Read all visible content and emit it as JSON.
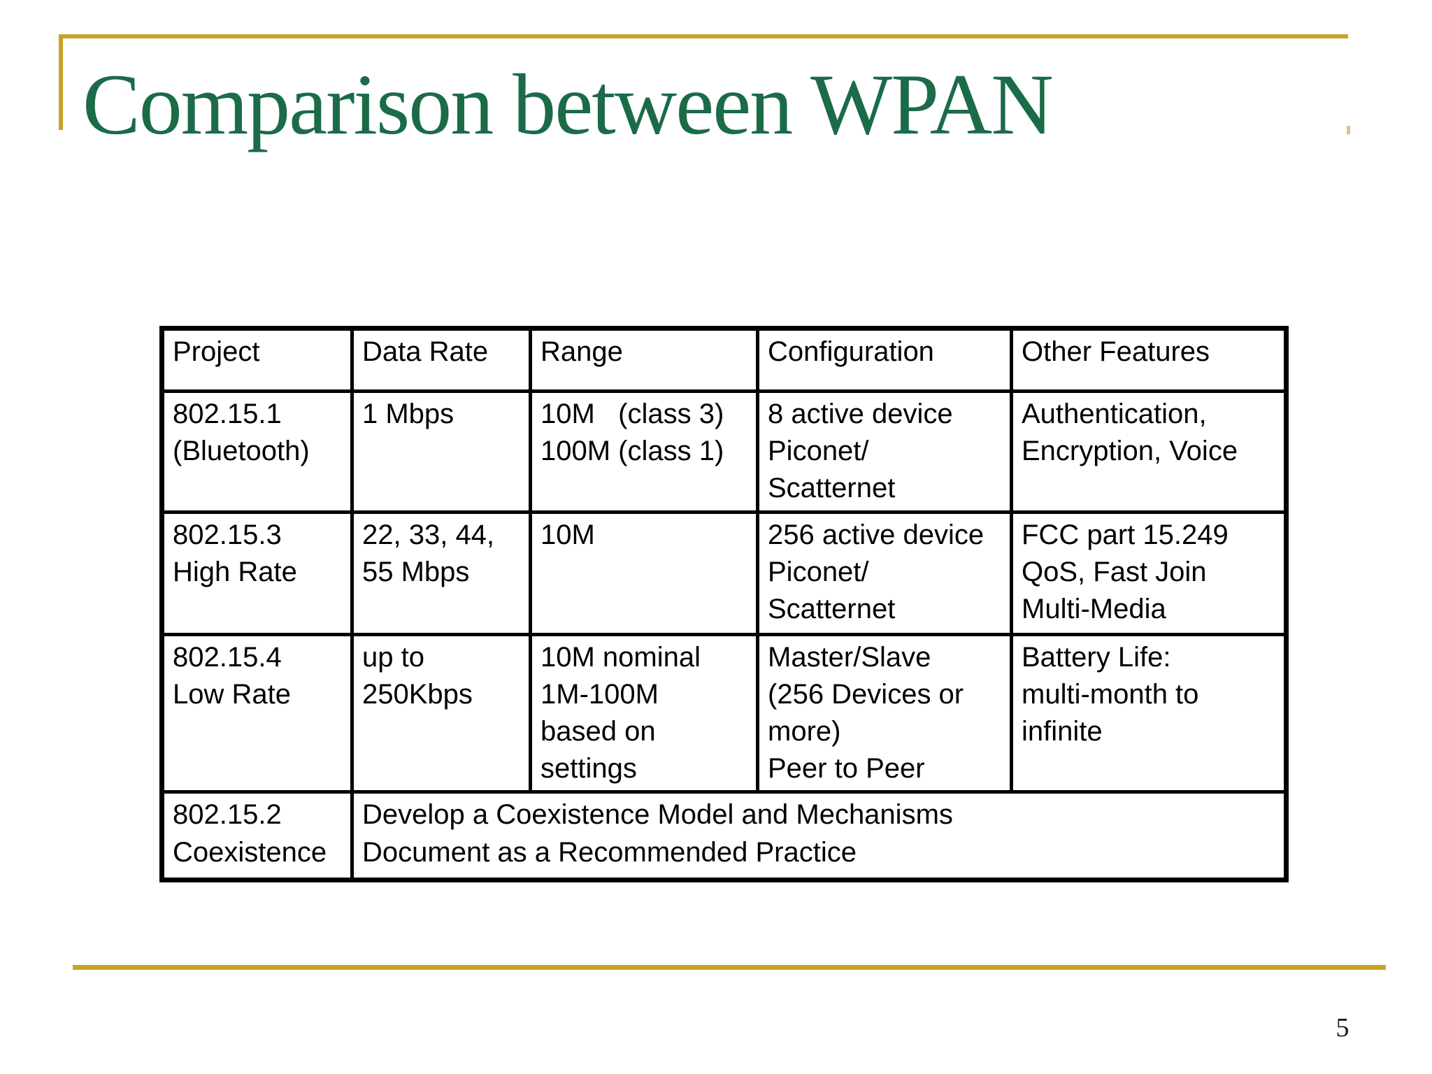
{
  "slide": {
    "title": "Comparison between WPAN",
    "page_number": "5",
    "colors": {
      "title_green": "#1B6B48",
      "accent_gold": "#C9A227",
      "link_blue": "#1414E6",
      "table_border": "#000000",
      "background": "#FFFFFF"
    }
  },
  "table": {
    "headers": [
      "Project",
      "Data Rate",
      "Range",
      "Configuration",
      "Other Features"
    ],
    "rows": [
      {
        "project": "802.15.1\n(Bluetooth)",
        "data_rate": "1 Mbps",
        "range": "10M   (class 3)\n100M (class 1)",
        "configuration": "8 active device\nPiconet/\nScatternet",
        "other_features": "Authentication,\nEncryption, Voice"
      },
      {
        "project": "802.15.3\nHigh Rate",
        "data_rate": "22, 33, 44,\n55 Mbps",
        "range": "10M",
        "configuration": "256 active device\nPiconet/\nScatternet",
        "other_features": "FCC part 15.249\nQoS, Fast Join\nMulti-Media"
      },
      {
        "project": "802.15.4\nLow Rate",
        "data_rate": "up to\n250Kbps",
        "range": "10M nominal\n1M-100M\nbased on\nsettings",
        "configuration": "Master/Slave\n(256 Devices or\nmore)\nPeer to Peer",
        "other_features": "Battery Life:\nmulti-month to\ninfinite"
      },
      {
        "project": "802.15.2\nCoexistence",
        "merged": "Develop a Coexistence Model and Mechanisms\nDocument as a Recommended Practice"
      }
    ]
  }
}
